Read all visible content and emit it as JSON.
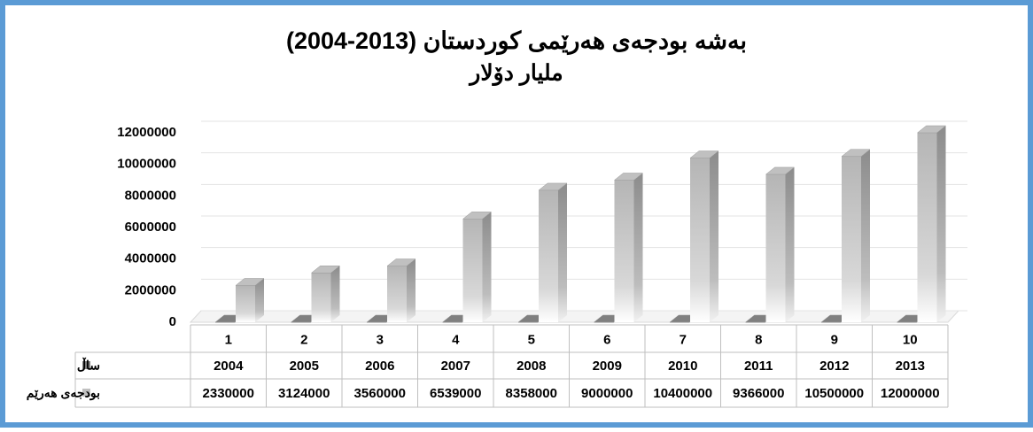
{
  "chart_data": {
    "type": "bar3d",
    "title": "بەشە بودجەی هەرێمی کوردستان (2013-2004)",
    "subtitle": "ملیار دۆلار",
    "categories": [
      "1",
      "2",
      "3",
      "4",
      "5",
      "6",
      "7",
      "8",
      "9",
      "10"
    ],
    "series": [
      {
        "name": "ساڵ",
        "color": "#808080",
        "values": [
          2004,
          2005,
          2006,
          2007,
          2008,
          2009,
          2010,
          2011,
          2012,
          2013
        ]
      },
      {
        "name": "بودجەی هەرێم",
        "color": "#c0c0c0",
        "values": [
          2330000,
          3124000,
          3560000,
          6539000,
          8358000,
          9000000,
          10400000,
          9366000,
          10500000,
          12000000
        ]
      }
    ],
    "ylim": [
      0,
      12000000
    ],
    "yticks": [
      0,
      2000000,
      4000000,
      6000000,
      8000000,
      10000000,
      12000000
    ],
    "grid": true
  }
}
